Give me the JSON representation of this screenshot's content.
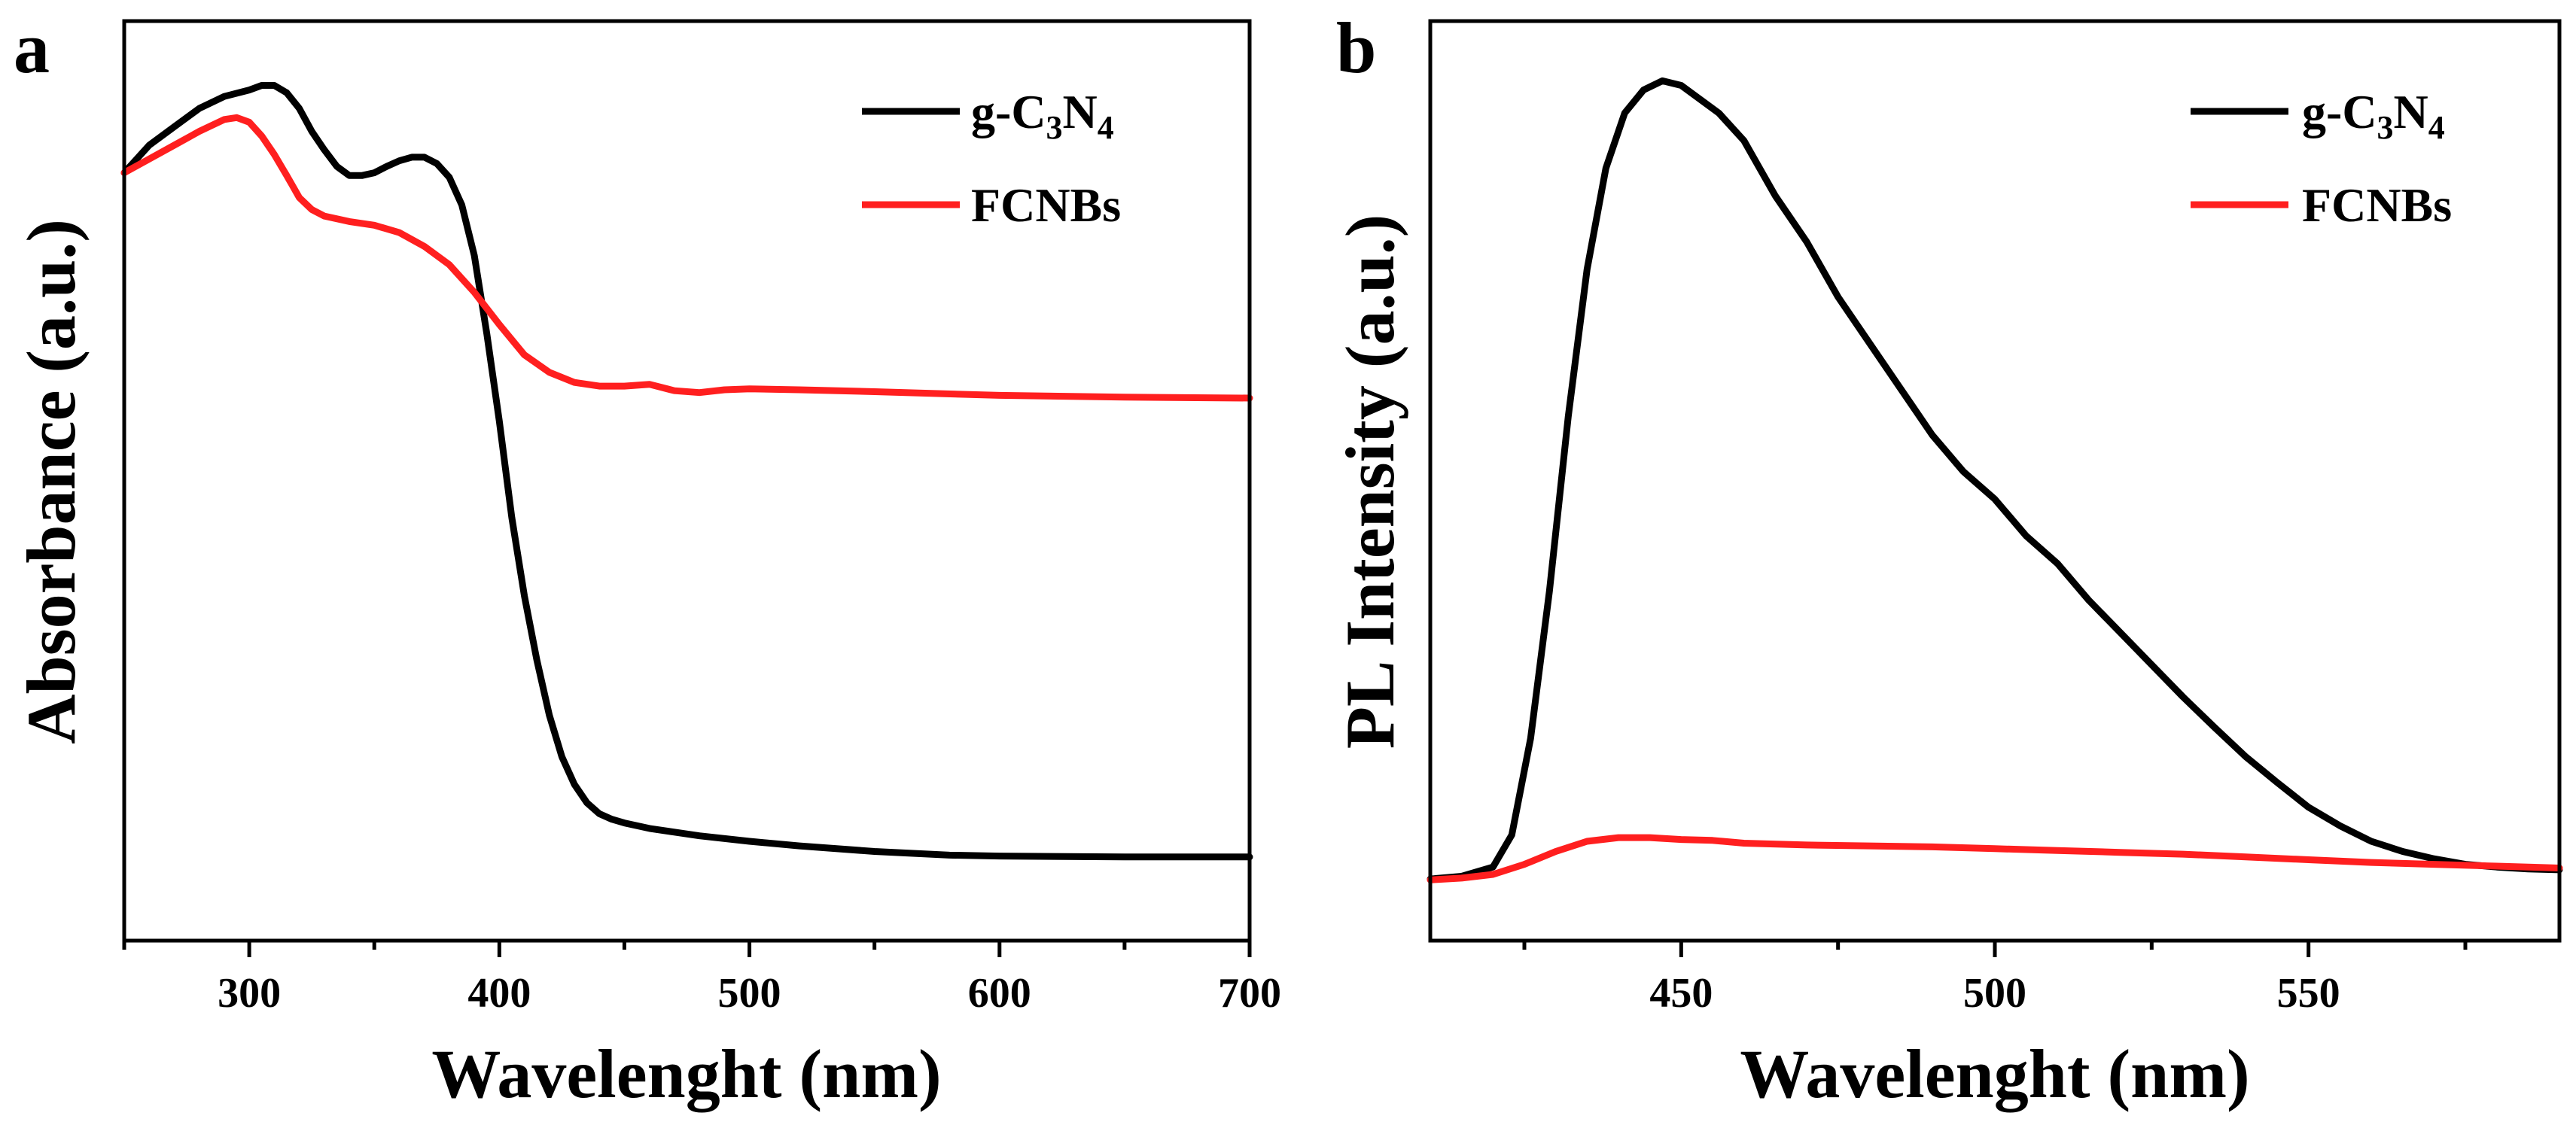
{
  "colors": {
    "g_C3N4": "#000000",
    "FCNBs": "#ff1f1f",
    "axis": "#000000",
    "background": "#ffffff"
  },
  "chart_data": [
    {
      "panel": "a",
      "type": "line",
      "xlabel": "Wavelenght (nm)",
      "ylabel": "Absorbance (a.u.)",
      "xlim": [
        250,
        700
      ],
      "ylim": [
        0,
        1
      ],
      "xticks": [
        300,
        400,
        500,
        600,
        700
      ],
      "xtick_labels": [
        "300",
        "400",
        "500",
        "600",
        "700"
      ],
      "yticks_shown": false,
      "grid": false,
      "legend_position": "top-right",
      "series": [
        {
          "name": "g-C3N4",
          "legend_label": {
            "parts": [
              {
                "t": "g-C",
                "sub": false
              },
              {
                "t": "3",
                "sub": true
              },
              {
                "t": "N",
                "sub": false
              },
              {
                "t": "4",
                "sub": true
              }
            ]
          },
          "color": "#000000",
          "x": [
            250,
            260,
            270,
            280,
            290,
            300,
            305,
            310,
            315,
            320,
            325,
            330,
            335,
            340,
            345,
            350,
            355,
            360,
            365,
            370,
            375,
            380,
            385,
            390,
            395,
            400,
            405,
            410,
            415,
            420,
            425,
            430,
            435,
            440,
            445,
            450,
            460,
            470,
            480,
            500,
            520,
            550,
            580,
            600,
            650,
            700
          ],
          "y": [
            0.835,
            0.865,
            0.885,
            0.905,
            0.918,
            0.925,
            0.93,
            0.93,
            0.922,
            0.905,
            0.88,
            0.86,
            0.842,
            0.832,
            0.832,
            0.835,
            0.842,
            0.848,
            0.852,
            0.852,
            0.845,
            0.83,
            0.8,
            0.745,
            0.66,
            0.565,
            0.46,
            0.375,
            0.305,
            0.245,
            0.2,
            0.17,
            0.15,
            0.138,
            0.132,
            0.128,
            0.122,
            0.118,
            0.114,
            0.108,
            0.103,
            0.097,
            0.093,
            0.092,
            0.091,
            0.091
          ]
        },
        {
          "name": "FCNBs",
          "legend_label": {
            "parts": [
              {
                "t": "FCNBs",
                "sub": false
              }
            ]
          },
          "color": "#ff1f1f",
          "x": [
            250,
            260,
            270,
            280,
            290,
            295,
            300,
            305,
            310,
            315,
            320,
            325,
            330,
            340,
            350,
            360,
            370,
            380,
            390,
            400,
            410,
            420,
            430,
            440,
            450,
            460,
            470,
            480,
            490,
            500,
            520,
            550,
            600,
            650,
            700
          ],
          "y": [
            0.835,
            0.85,
            0.865,
            0.88,
            0.893,
            0.895,
            0.89,
            0.875,
            0.855,
            0.832,
            0.808,
            0.795,
            0.788,
            0.782,
            0.778,
            0.77,
            0.755,
            0.735,
            0.705,
            0.67,
            0.637,
            0.618,
            0.607,
            0.603,
            0.603,
            0.605,
            0.598,
            0.596,
            0.599,
            0.6,
            0.599,
            0.597,
            0.593,
            0.591,
            0.59
          ]
        }
      ]
    },
    {
      "panel": "b",
      "type": "line",
      "xlabel": "Wavelenght (nm)",
      "ylabel": "PL Intensity (a.u.)",
      "xlim": [
        410,
        590
      ],
      "ylim": [
        0,
        1
      ],
      "xticks": [
        450,
        500,
        550
      ],
      "xtick_labels": [
        "450",
        "500",
        "550"
      ],
      "yticks_shown": false,
      "grid": false,
      "legend_position": "top-right",
      "series": [
        {
          "name": "g-C3N4",
          "legend_label": {
            "parts": [
              {
                "t": "g-C",
                "sub": false
              },
              {
                "t": "3",
                "sub": true
              },
              {
                "t": "N",
                "sub": false
              },
              {
                "t": "4",
                "sub": true
              }
            ]
          },
          "color": "#000000",
          "x": [
            410,
            415,
            420,
            423,
            426,
            429,
            432,
            435,
            438,
            441,
            444,
            447,
            450,
            453,
            456,
            460,
            465,
            470,
            475,
            480,
            485,
            490,
            495,
            500,
            505,
            510,
            515,
            520,
            525,
            530,
            535,
            540,
            545,
            550,
            555,
            560,
            565,
            570,
            575,
            580,
            585,
            590
          ],
          "y": [
            0.067,
            0.07,
            0.08,
            0.115,
            0.22,
            0.38,
            0.57,
            0.73,
            0.84,
            0.9,
            0.925,
            0.935,
            0.93,
            0.915,
            0.9,
            0.87,
            0.81,
            0.76,
            0.7,
            0.65,
            0.6,
            0.55,
            0.51,
            0.48,
            0.44,
            0.41,
            0.37,
            0.335,
            0.3,
            0.265,
            0.232,
            0.2,
            0.172,
            0.145,
            0.125,
            0.108,
            0.097,
            0.089,
            0.083,
            0.08,
            0.078,
            0.077
          ]
        },
        {
          "name": "FCNBs",
          "legend_label": {
            "parts": [
              {
                "t": "FCNBs",
                "sub": false
              }
            ]
          },
          "color": "#ff1f1f",
          "x": [
            410,
            415,
            420,
            425,
            430,
            435,
            440,
            445,
            450,
            455,
            460,
            470,
            480,
            490,
            500,
            510,
            520,
            530,
            540,
            550,
            560,
            570,
            580,
            590
          ],
          "y": [
            0.066,
            0.068,
            0.072,
            0.083,
            0.097,
            0.108,
            0.112,
            0.112,
            0.11,
            0.109,
            0.106,
            0.104,
            0.103,
            0.102,
            0.1,
            0.098,
            0.096,
            0.094,
            0.091,
            0.088,
            0.085,
            0.083,
            0.081,
            0.079
          ]
        }
      ]
    }
  ]
}
